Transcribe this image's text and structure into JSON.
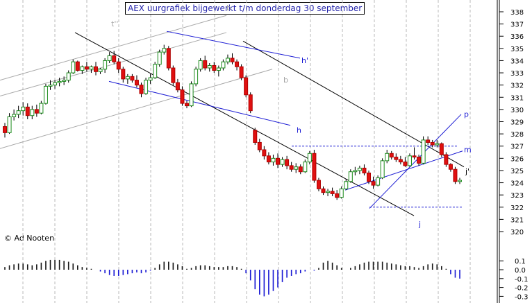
{
  "chart_data": {
    "type": "candlestick",
    "title": "AEX uurgrafiek bijgewerkt t/m donderdag 30 september",
    "copyright": "© Ad Nooten",
    "y_axis": {
      "ticks": [
        338,
        337,
        336,
        335,
        334,
        333,
        332,
        331,
        330,
        329,
        328,
        327,
        326,
        325,
        324,
        323,
        322,
        321,
        320
      ],
      "range": [
        319.5,
        338.5
      ]
    },
    "indicator_axis": {
      "ticks": [
        "0.1",
        "0.0",
        "-0.1",
        "-0.2",
        "-0.3"
      ],
      "values": [
        0.1,
        0.0,
        -0.1,
        -0.2,
        -0.3
      ],
      "range": [
        -0.35,
        0.15
      ]
    },
    "line_labels": [
      "t''",
      "b",
      "h'",
      "b",
      "h",
      "j",
      "p",
      "m",
      "j'"
    ],
    "candles": [
      [
        328.6,
        328.9,
        327.7,
        328.1
      ],
      [
        328.1,
        329.7,
        328.0,
        329.4
      ],
      [
        329.4,
        330.0,
        329.1,
        329.6
      ],
      [
        329.6,
        330.3,
        329.3,
        329.9
      ],
      [
        329.9,
        330.6,
        329.5,
        330.2
      ],
      [
        330.2,
        330.5,
        329.2,
        329.5
      ],
      [
        329.5,
        330.3,
        329.2,
        330.0
      ],
      [
        330.0,
        330.4,
        329.4,
        329.7
      ],
      [
        329.7,
        330.7,
        329.6,
        330.5
      ],
      [
        330.5,
        332.1,
        330.4,
        331.9
      ],
      [
        331.9,
        332.4,
        331.6,
        332.0
      ],
      [
        332.0,
        332.4,
        331.7,
        332.2
      ],
      [
        332.2,
        332.6,
        331.9,
        332.3
      ],
      [
        332.3,
        332.7,
        332.0,
        332.4
      ],
      [
        332.4,
        333.2,
        332.2,
        333.0
      ],
      [
        333.0,
        334.1,
        332.9,
        333.9
      ],
      [
        333.9,
        334.0,
        333.1,
        333.2
      ],
      [
        333.2,
        333.6,
        332.9,
        333.5
      ],
      [
        333.5,
        333.9,
        333.1,
        333.3
      ],
      [
        333.3,
        333.6,
        333.0,
        333.5
      ],
      [
        333.5,
        333.9,
        332.8,
        333.1
      ],
      [
        333.1,
        333.4,
        332.9,
        333.3
      ],
      [
        333.3,
        334.2,
        333.0,
        334.0
      ],
      [
        334.0,
        334.7,
        333.8,
        334.4
      ],
      [
        334.4,
        334.8,
        333.7,
        333.9
      ],
      [
        333.9,
        334.2,
        333.0,
        333.3
      ],
      [
        333.3,
        333.5,
        332.2,
        332.5
      ],
      [
        332.5,
        332.9,
        332.1,
        332.7
      ],
      [
        332.7,
        332.9,
        332.2,
        332.4
      ],
      [
        332.4,
        332.8,
        331.8,
        332.0
      ],
      [
        332.0,
        332.2,
        331.0,
        331.3
      ],
      [
        331.3,
        332.6,
        331.2,
        332.4
      ],
      [
        332.4,
        332.9,
        332.1,
        332.6
      ],
      [
        332.6,
        333.9,
        332.5,
        333.7
      ],
      [
        333.7,
        334.9,
        333.5,
        334.7
      ],
      [
        334.7,
        335.3,
        334.5,
        335.0
      ],
      [
        335.0,
        335.2,
        333.2,
        333.4
      ],
      [
        333.4,
        333.6,
        332.0,
        332.2
      ],
      [
        332.2,
        332.5,
        331.4,
        331.6
      ],
      [
        331.6,
        331.9,
        330.3,
        330.5
      ],
      [
        330.5,
        330.7,
        330.1,
        330.3
      ],
      [
        330.3,
        332.3,
        330.2,
        332.1
      ],
      [
        332.1,
        333.5,
        331.9,
        333.3
      ],
      [
        333.3,
        334.2,
        333.1,
        334.0
      ],
      [
        334.0,
        334.4,
        333.2,
        333.4
      ],
      [
        333.4,
        333.8,
        333.1,
        333.6
      ],
      [
        333.6,
        333.9,
        333.0,
        333.2
      ],
      [
        333.2,
        333.6,
        332.7,
        333.4
      ],
      [
        333.4,
        334.1,
        333.2,
        333.9
      ],
      [
        333.9,
        334.5,
        333.7,
        334.2
      ],
      [
        334.2,
        334.6,
        333.7,
        333.9
      ],
      [
        333.9,
        334.1,
        333.2,
        333.5
      ],
      [
        333.5,
        333.7,
        332.4,
        332.6
      ],
      [
        332.6,
        332.8,
        331.0,
        331.2
      ],
      [
        331.2,
        331.4,
        329.7,
        329.9
      ],
      [
        328.3,
        328.5,
        327.1,
        327.3
      ],
      [
        327.3,
        327.6,
        326.5,
        326.7
      ],
      [
        326.7,
        327.0,
        325.9,
        326.2
      ],
      [
        326.2,
        326.5,
        325.5,
        325.7
      ],
      [
        325.7,
        326.3,
        325.4,
        326.0
      ],
      [
        326.0,
        326.4,
        325.2,
        325.5
      ],
      [
        325.5,
        326.1,
        325.3,
        325.9
      ],
      [
        325.9,
        326.2,
        325.1,
        325.4
      ],
      [
        325.4,
        325.7,
        324.9,
        325.1
      ],
      [
        325.1,
        325.6,
        324.8,
        325.3
      ],
      [
        325.3,
        325.5,
        324.7,
        324.9
      ],
      [
        324.9,
        325.9,
        324.8,
        325.7
      ],
      [
        325.7,
        326.6,
        325.5,
        326.4
      ],
      [
        326.4,
        326.7,
        324.0,
        324.2
      ],
      [
        324.2,
        324.4,
        323.3,
        323.5
      ],
      [
        323.5,
        323.7,
        323.0,
        323.2
      ],
      [
        323.2,
        323.5,
        322.9,
        323.3
      ],
      [
        323.3,
        323.6,
        322.9,
        323.1
      ],
      [
        323.1,
        323.4,
        322.6,
        322.8
      ],
      [
        322.8,
        323.7,
        322.7,
        323.5
      ],
      [
        323.5,
        324.3,
        323.4,
        324.1
      ],
      [
        324.1,
        325.1,
        324.0,
        324.9
      ],
      [
        324.9,
        325.3,
        324.6,
        325.0
      ],
      [
        325.0,
        325.4,
        324.7,
        325.2
      ],
      [
        325.2,
        325.5,
        324.6,
        324.8
      ],
      [
        324.8,
        325.0,
        323.9,
        324.1
      ],
      [
        324.1,
        324.5,
        323.5,
        323.8
      ],
      [
        323.8,
        324.6,
        323.7,
        324.4
      ],
      [
        324.4,
        326.0,
        324.3,
        325.8
      ],
      [
        325.8,
        326.7,
        325.6,
        326.4
      ],
      [
        326.4,
        326.6,
        325.9,
        326.1
      ],
      [
        326.1,
        326.4,
        325.7,
        325.9
      ],
      [
        325.9,
        326.2,
        325.5,
        325.7
      ],
      [
        325.7,
        326.1,
        325.3,
        325.4
      ],
      [
        325.4,
        326.4,
        325.3,
        326.2
      ],
      [
        326.2,
        326.9,
        325.9,
        326.1
      ],
      [
        326.1,
        326.3,
        325.4,
        325.6
      ],
      [
        325.6,
        327.8,
        325.5,
        327.5
      ],
      [
        327.5,
        327.8,
        327.1,
        327.3
      ],
      [
        327.3,
        327.5,
        326.9,
        327.1
      ],
      [
        327.1,
        327.5,
        326.9,
        327.2
      ],
      [
        327.2,
        327.3,
        326.1,
        326.3
      ],
      [
        326.3,
        326.5,
        325.3,
        325.5
      ],
      [
        325.5,
        325.6,
        324.9,
        325.1
      ],
      [
        325.1,
        325.3,
        323.9,
        324.1
      ],
      [
        324.1,
        324.4,
        323.9,
        324.2
      ]
    ],
    "indicator": [
      0.03,
      0.05,
      0.06,
      0.07,
      0.07,
      0.06,
      0.05,
      0.06,
      0.08,
      0.1,
      0.11,
      0.11,
      0.11,
      0.1,
      0.09,
      0.07,
      0.05,
      0.03,
      0.02,
      0.01,
      0.0,
      -0.02,
      -0.04,
      -0.06,
      -0.07,
      -0.07,
      -0.06,
      -0.05,
      -0.04,
      -0.03,
      -0.04,
      -0.03,
      -0.01,
      0.02,
      0.06,
      0.09,
      0.09,
      0.08,
      0.06,
      0.04,
      0.01,
      0.02,
      0.04,
      0.05,
      0.05,
      0.04,
      0.03,
      0.03,
      0.03,
      0.04,
      0.04,
      0.03,
      0.01,
      -0.04,
      -0.12,
      -0.22,
      -0.28,
      -0.3,
      -0.28,
      -0.24,
      -0.2,
      -0.14,
      -0.09,
      -0.07,
      -0.05,
      -0.04,
      -0.02,
      0.0,
      -0.01,
      0.02,
      0.08,
      0.1,
      0.08,
      0.05,
      0.02,
      0.0,
      0.02,
      0.04,
      0.06,
      0.08,
      0.09,
      0.09,
      0.09,
      0.09,
      0.08,
      0.07,
      0.06,
      0.05,
      0.04,
      0.04,
      0.03,
      0.02,
      0.04,
      0.06,
      0.07,
      0.06,
      0.04,
      0.01,
      -0.05,
      -0.09,
      -0.1
    ]
  }
}
